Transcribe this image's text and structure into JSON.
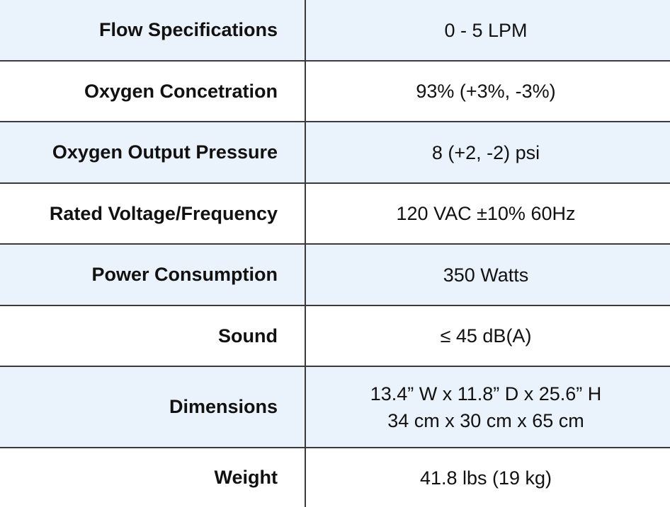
{
  "table": {
    "rows": [
      {
        "label": "Flow Specifications",
        "value": [
          "0 - 5 LPM"
        ]
      },
      {
        "label": "Oxygen Concetration",
        "value": [
          "93% (+3%, -3%)"
        ]
      },
      {
        "label": "Oxygen Output Pressure",
        "value": [
          "8 (+2, -2) psi"
        ]
      },
      {
        "label": "Rated Voltage/Frequency",
        "value": [
          "120 VAC ±10% 60Hz"
        ]
      },
      {
        "label": "Power Consumption",
        "value": [
          "350 Watts"
        ]
      },
      {
        "label": "Sound",
        "value": [
          "≤ 45 dB(A)"
        ]
      },
      {
        "label": "Dimensions",
        "value": [
          "13.4” W x 11.8” D x 25.6” H",
          "34 cm x 30 cm x 65 cm"
        ]
      },
      {
        "label": "Weight",
        "value": [
          "41.8 lbs (19 kg)"
        ]
      }
    ]
  }
}
